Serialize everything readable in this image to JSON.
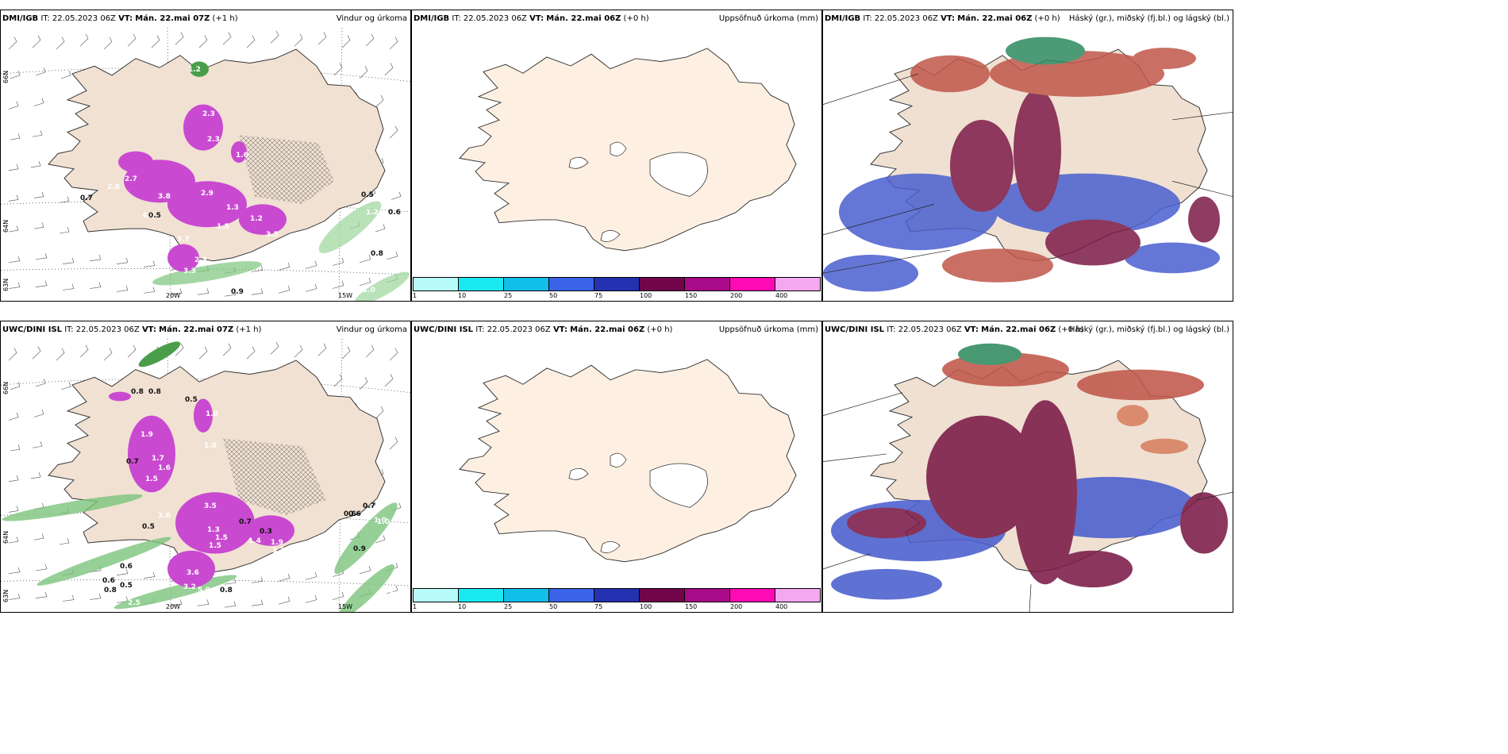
{
  "panels": {
    "p1": {
      "model": "DMI/IGB",
      "it_label": "IT:",
      "it": "22.05.2023 06Z",
      "vt_label": "VT:",
      "vt": "Mán. 22.mai 07Z",
      "lead": "(+1 h)",
      "product": "Vindur og úrkoma"
    },
    "p2": {
      "model": "DMI/IGB",
      "it_label": "IT:",
      "it": "22.05.2023 06Z",
      "vt_label": "VT:",
      "vt": "Mán. 22.mai 06Z",
      "lead": "(+0 h)",
      "product": "Uppsöfnuð úrkoma (mm)"
    },
    "p3": {
      "model": "DMI/IGB",
      "it_label": "IT:",
      "it": "22.05.2023 06Z",
      "vt_label": "VT:",
      "vt": "Mán. 22.mai 06Z",
      "lead": "(+0 h)",
      "product": "Háský (gr.), miðský (fj.bl.) og lágský (bl.)"
    },
    "p4": {
      "model": "UWC/DINI ISL",
      "it_label": "IT:",
      "it": "22.05.2023 06Z",
      "vt_label": "VT:",
      "vt": "Mán. 22.mai 07Z",
      "lead": "(+1 h)",
      "product": "Vindur og úrkoma"
    },
    "p5": {
      "model": "UWC/DINI ISL",
      "it_label": "IT:",
      "it": "22.05.2023 06Z",
      "vt_label": "VT:",
      "vt": "Mán. 22.mai 06Z",
      "lead": "(+0 h)",
      "product": "Uppsöfnuð úrkoma (mm)"
    },
    "p6": {
      "model": "UWC/DINI ISL",
      "it_label": "IT:",
      "it": "22.05.2023 06Z",
      "vt_label": "VT:",
      "vt": "Mán. 22.mai 06Z",
      "lead": "(+0 h)",
      "product": "Háský (gr.), miðský (fj.bl.) og lágský (bl.)"
    }
  },
  "grid_labels": {
    "lon_20w": "20W",
    "lon_15w": "15W",
    "lat_66n": "66N",
    "lat_64n": "64N",
    "lat_63n": "63N"
  },
  "colorbar": {
    "ticks": [
      "1",
      "10",
      "25",
      "50",
      "75",
      "100",
      "150",
      "200",
      "400"
    ],
    "colors": [
      "#b8fbfb",
      "#1ae9f0",
      "#12bfe8",
      "#3a64e8",
      "#2431b0",
      "#72054a",
      "#a80a88",
      "#ff0ab4",
      "#f4a8f0"
    ]
  },
  "precip_labels": {
    "p1": [
      "1.2",
      "2.3",
      "2.3",
      "1.6",
      "2.7",
      "2.8",
      "3.8",
      "4.8",
      "2.9",
      "1.3",
      "1.5",
      "1.2",
      "3.5",
      "3.7",
      "2.3",
      "3.3",
      "5.3",
      "0.7",
      "0.9",
      "0.5",
      "1.2",
      "0.6",
      "0.8",
      "1.0",
      "0.5"
    ],
    "p4": [
      "1.3",
      "0.8",
      "0.8",
      "0.5",
      "1.0",
      "1.0",
      "1.9",
      "1.7",
      "1.6",
      "0.7",
      "1.5",
      "3.6",
      "0.5",
      "3.5",
      "1.3",
      "1.5",
      "1.5",
      "0.7",
      "1.4",
      "1.9",
      "3.2",
      "0.3",
      "0.6",
      "1.0",
      "3.6",
      "3.2",
      "5.0",
      "0.8",
      "0.6",
      "0.6",
      "0.5",
      "1.3",
      "1.3",
      "0.8",
      "0.9",
      "1.0",
      "0.7",
      "0.6",
      "1.0",
      "2.5",
      "1.3"
    ]
  }
}
